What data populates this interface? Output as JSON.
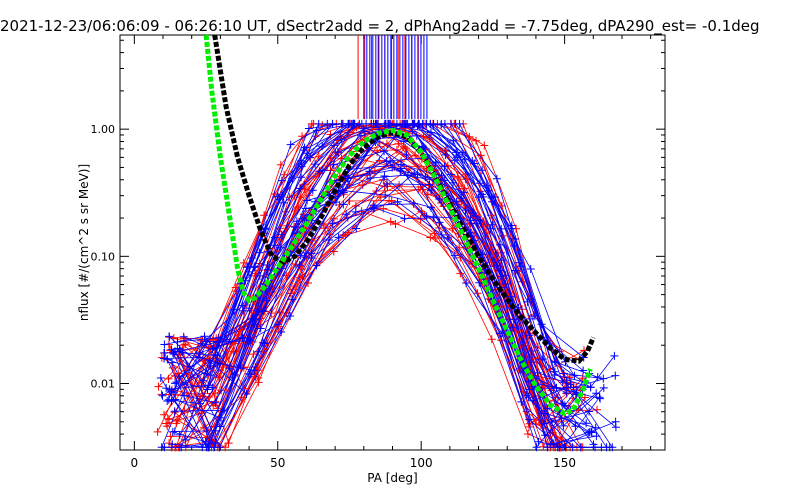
{
  "chart_data": {
    "type": "scatter",
    "title": "2021-12-23/06:06:09 - 06:26:10 UT, dSectr2add = 2, dPhAng2add = -7.75deg, dPA290_est=  -0.1deg",
    "xlabel": "PA [deg]",
    "ylabel": "nflux [#/(cm^2 s sr MeV)]",
    "xlim": [
      -5,
      185
    ],
    "ylim": [
      0.003,
      5.5
    ],
    "yscale": "log",
    "x_ticks": [
      0,
      50,
      100,
      150
    ],
    "y_ticks": [
      {
        "value": 0.01,
        "label": "0.01"
      },
      {
        "value": 0.1,
        "label": "0.10"
      },
      {
        "value": 1.0,
        "label": "1.00"
      }
    ],
    "grid": false,
    "colors": {
      "red": "#ff0000",
      "blue": "#0000ff",
      "green": "#00ee00",
      "black": "#000000"
    },
    "series": [
      {
        "color": "black",
        "style": "thick-dashed",
        "x": [
          28,
          32,
          36,
          40,
          44,
          48,
          52,
          56,
          60,
          65,
          70,
          75,
          80,
          85,
          90,
          95,
          100,
          105,
          110,
          115,
          120,
          125,
          130,
          135,
          140,
          145,
          150,
          155,
          158,
          160
        ],
        "y": [
          5.5,
          1.5,
          0.6,
          0.3,
          0.16,
          0.1,
          0.09,
          0.1,
          0.13,
          0.2,
          0.33,
          0.52,
          0.72,
          0.87,
          0.94,
          0.87,
          0.65,
          0.42,
          0.26,
          0.16,
          0.1,
          0.066,
          0.046,
          0.033,
          0.025,
          0.019,
          0.0155,
          0.015,
          0.018,
          0.023
        ]
      },
      {
        "color": "green",
        "style": "thick-dashed",
        "x": [
          25,
          27,
          30,
          33,
          36,
          38,
          40,
          42,
          45,
          48,
          52,
          56,
          60,
          65,
          70,
          75,
          80,
          85,
          90,
          95,
          100,
          105,
          110,
          115,
          120,
          125,
          130,
          135,
          140,
          145,
          150,
          153,
          156,
          159
        ],
        "y": [
          5.5,
          2.0,
          0.6,
          0.22,
          0.08,
          0.052,
          0.045,
          0.047,
          0.056,
          0.07,
          0.095,
          0.13,
          0.18,
          0.28,
          0.43,
          0.62,
          0.8,
          0.93,
          0.98,
          0.9,
          0.66,
          0.41,
          0.24,
          0.14,
          0.08,
          0.045,
          0.026,
          0.015,
          0.0095,
          0.0068,
          0.0058,
          0.0062,
          0.0085,
          0.013
        ]
      }
    ],
    "point_clouds": [
      {
        "color": "red",
        "x_range": [
          9,
          165
        ],
        "count": 40
      },
      {
        "color": "blue",
        "x_range": [
          9,
          172
        ],
        "count": 40
      }
    ],
    "annotations": [
      {
        "type": "vertical-ticks",
        "color": "red",
        "x_range": [
          78,
          99
        ],
        "y_range": [
          1.2,
          5.5
        ]
      },
      {
        "type": "vertical-ticks",
        "color": "blue",
        "x_range": [
          80,
          102
        ],
        "y_range": [
          1.2,
          5.5
        ]
      }
    ]
  }
}
